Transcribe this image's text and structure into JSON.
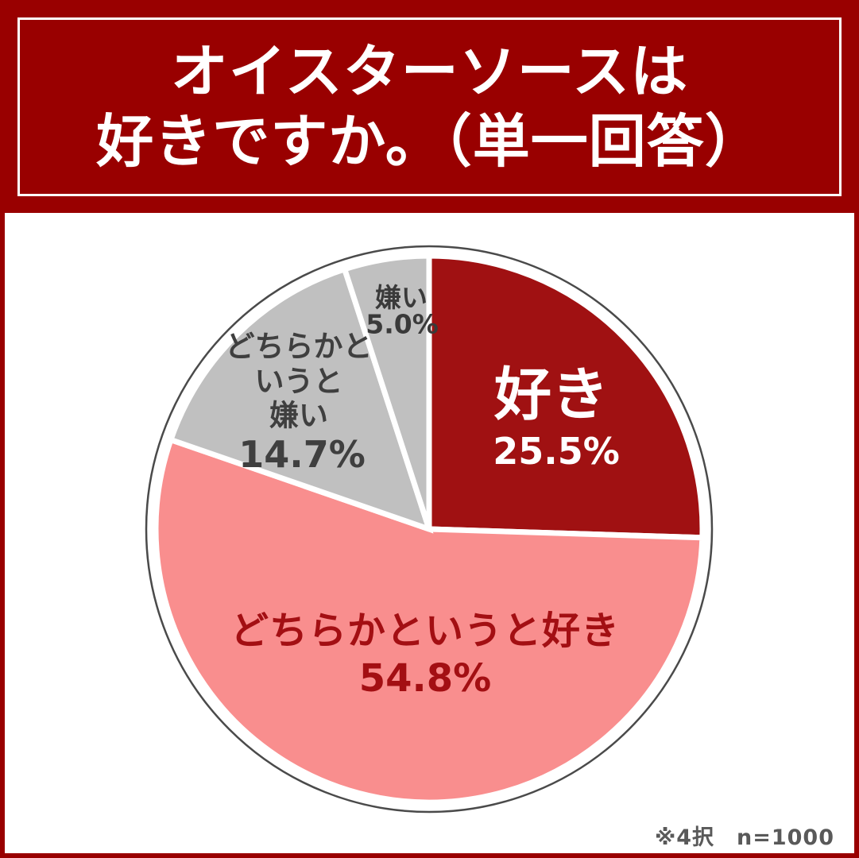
{
  "title": {
    "text": "オイスターソースは\n好きですか。（単一回答）"
  },
  "footnote": "※4択　n=1000",
  "colors": {
    "banner_bg": "#990000",
    "panel_bg": "#ffffff",
    "slice_dark_red": "#A01112",
    "slice_pink": "#F98E8E",
    "slice_gray": "#C0C0C0",
    "outline_gray": "#4A4A4A",
    "label_white": "#ffffff",
    "label_dark_red": "#A30F13",
    "label_dark_gray": "#3F3F3F"
  },
  "chart_data": {
    "type": "pie",
    "title": "オイスターソースは好きですか。（単一回答）",
    "categories": [
      "好き",
      "どちらかというと好き",
      "どちらかというと嫌い",
      "嫌い"
    ],
    "values": [
      25.5,
      54.8,
      14.7,
      5.0
    ],
    "unit": "%",
    "slice_colors": [
      "#A01112",
      "#F98E8E",
      "#C0C0C0",
      "#C0C0C0"
    ],
    "start_angle_deg": -90,
    "direction": "clockwise",
    "n": 1000,
    "note": "※4択"
  },
  "labels": {
    "suki": {
      "name": "好き",
      "pct": "25.5%"
    },
    "dochira_suki": {
      "name": "どちらかというと好き",
      "pct": "54.8%"
    },
    "dochira_kirai": {
      "name": "どちらかと\nいうと\n嫌い",
      "pct": "14.7%"
    },
    "kirai": {
      "name": "嫌い",
      "pct": "5.0%"
    }
  }
}
